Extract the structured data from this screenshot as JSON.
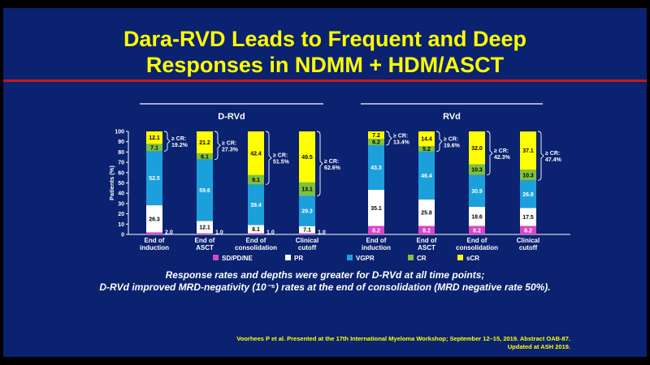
{
  "slide": {
    "title_line1": "Dara-RVD Leads to Frequent and Deep",
    "title_line2": "Responses in NDMM + HDM/ASCT",
    "caption_line1": "Response rates and depths were greater for D-RVd at all time points;",
    "caption_line2": "D-RVd improved MRD-negativity (10⁻⁵) rates at the end of consolidation (MRD negative rate 50%).",
    "citation_line1": "Voorhees P et al. Presented at the 17th International Myeloma Workshop; September 12–15, 2019. Abstract OAB-87.",
    "citation_line2": "Updated at ASH 2019.",
    "colors": {
      "background": "#0a2270",
      "title": "#ffff00",
      "rule": "#c41a1a"
    }
  },
  "chart_data": {
    "type": "bar",
    "stacked": true,
    "ylabel": "Patients (%)",
    "ylim": [
      0,
      100
    ],
    "yticks": [
      0,
      10,
      20,
      30,
      40,
      50,
      60,
      70,
      80,
      90,
      100
    ],
    "categories": [
      "End of\ninduction",
      "End of\nASCT",
      "End of\nconsolidation",
      "Clinical\ncutoff"
    ],
    "legend_position": "bottom",
    "series": [
      {
        "name": "SD/PD/NE",
        "color": "#d946c8"
      },
      {
        "name": "PR",
        "color": "#ffffff"
      },
      {
        "name": "VGPR",
        "color": "#1ca0dc"
      },
      {
        "name": "CR",
        "color": "#80c040"
      },
      {
        "name": "sCR",
        "color": "#ffff00"
      }
    ],
    "groups": [
      {
        "name": "D-RVd",
        "values": {
          "SD/PD/NE": [
            2.0,
            1.0,
            1.0,
            1.0
          ],
          "PR": [
            26.3,
            12.1,
            8.1,
            7.1
          ],
          "VGPR": [
            52.5,
            59.6,
            39.4,
            29.3
          ],
          "CR": [
            7.1,
            6.1,
            9.1,
            13.1
          ],
          "sCR": [
            12.1,
            21.2,
            42.4,
            49.5
          ]
        },
        "ge_cr": [
          "≥ CR:\n19.2%",
          "≥ CR:\n27.3%",
          "≥ CR:\n51.5%",
          "≥ CR:\n62.6%"
        ]
      },
      {
        "name": "RVd",
        "values": {
          "SD/PD/NE": [
            8.2,
            8.2,
            8.2,
            8.2
          ],
          "PR": [
            35.1,
            25.8,
            18.6,
            17.5
          ],
          "VGPR": [
            43.3,
            46.4,
            30.9,
            26.8
          ],
          "CR": [
            6.2,
            5.2,
            10.3,
            10.3
          ],
          "sCR": [
            7.2,
            14.4,
            32.0,
            37.1
          ]
        },
        "ge_cr": [
          "≥ CR:\n13.4%",
          "≥ CR:\n19.6%",
          "≥ CR:\n42.3%",
          "≥ CR:\n47.4%"
        ]
      }
    ]
  }
}
